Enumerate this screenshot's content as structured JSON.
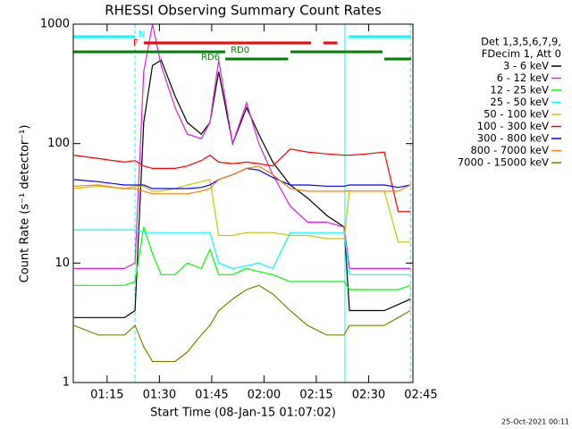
{
  "chart_data": {
    "type": "line",
    "title": "RHESSI Observing Summary Count Rates",
    "xlabel": "Start Time (08-Jan-15 01:07:02)",
    "ylabel": "Count Rate (s⁻¹ detector⁻¹)",
    "footer": "25-Oct-2021 00:11",
    "legend_title": [
      "Det 1,3,5,6,7,9,",
      "FDecim 1, Att 0"
    ],
    "log_y": true,
    "xlim": [
      65.3,
      162.7
    ],
    "ylim": [
      1,
      1000
    ],
    "yticks": [
      1,
      10,
      100,
      1000
    ],
    "xticks": [
      {
        "value": 75,
        "label": "01:15"
      },
      {
        "value": 90,
        "label": "01:30"
      },
      {
        "value": 105,
        "label": "01:45"
      },
      {
        "value": 120,
        "label": "02:00"
      },
      {
        "value": 135,
        "label": "02:15"
      },
      {
        "value": 150,
        "label": "02:30"
      },
      {
        "value": 165,
        "label": "02:45"
      }
    ],
    "x": [
      65.5,
      72.5,
      80,
      83,
      85.5,
      88,
      90.5,
      94.5,
      98,
      102,
      104.5,
      107,
      111,
      115,
      118.5,
      122.5,
      127.5,
      132.5,
      138,
      143,
      144.5,
      149.5,
      154.5,
      158.5,
      162
    ],
    "series": [
      {
        "name": "3 - 6 keV",
        "color": "#000000",
        "values": [
          3.5,
          3.5,
          3.5,
          4,
          150,
          450,
          500,
          250,
          150,
          120,
          150,
          400,
          100,
          200,
          120,
          70,
          45,
          35,
          25,
          20,
          4,
          4,
          4,
          4.5,
          5
        ]
      },
      {
        "name": "6 - 12 keV",
        "color": "#e020e0",
        "values": [
          9,
          9,
          9,
          10,
          400,
          1000,
          450,
          200,
          120,
          110,
          150,
          500,
          100,
          220,
          100,
          55,
          30,
          22,
          22,
          20,
          9,
          9,
          9,
          9,
          9
        ]
      },
      {
        "name": "12 - 25 keV",
        "color": "#00ff00",
        "values": [
          6.5,
          6.5,
          6.5,
          7,
          20,
          12,
          8,
          8,
          10,
          9,
          13,
          8,
          8,
          9,
          8.5,
          8,
          7,
          7,
          7,
          7,
          6,
          6,
          6,
          6,
          6.5
        ]
      },
      {
        "name": "25 - 50 keV",
        "color": "#00ffff",
        "values": [
          19,
          19,
          19,
          19,
          18,
          18,
          18,
          18,
          18,
          18,
          18,
          10,
          9,
          9.5,
          10,
          9,
          18,
          18,
          18,
          18,
          8,
          8,
          8,
          8,
          8
        ]
      },
      {
        "name": "50 - 100 keV",
        "color": "#c8c800",
        "values": [
          42,
          44,
          42,
          44,
          44,
          40,
          40,
          42,
          45,
          48,
          50,
          17,
          17,
          18,
          18,
          18,
          17,
          17,
          16,
          16,
          40,
          40,
          40,
          15,
          15
        ]
      },
      {
        "name": "100 - 300 keV",
        "color": "#ff0000",
        "values": [
          80,
          75,
          70,
          72,
          65,
          62,
          62,
          62,
          65,
          72,
          80,
          70,
          68,
          70,
          68,
          65,
          90,
          85,
          82,
          80,
          80,
          82,
          85,
          27,
          27
        ]
      },
      {
        "name": "300 - 800 keV",
        "color": "#0000ff",
        "values": [
          50,
          48,
          45,
          45,
          45,
          42,
          42,
          42,
          42,
          43,
          45,
          50,
          55,
          62,
          60,
          52,
          45,
          45,
          44,
          44,
          45,
          45,
          45,
          43,
          45
        ]
      },
      {
        "name": "800 - 7000 keV",
        "color": "#ff8000",
        "values": [
          44,
          45,
          42,
          42,
          40,
          38,
          38,
          38,
          38,
          40,
          42,
          50,
          55,
          62,
          65,
          55,
          42,
          40,
          40,
          40,
          40,
          40,
          40,
          40,
          45
        ]
      },
      {
        "name": "7000 - 15000 keV",
        "color": "#808000",
        "values": [
          3,
          2.5,
          2.5,
          3,
          2,
          1.5,
          1.5,
          1.5,
          1.8,
          2.5,
          3,
          4,
          5,
          6,
          6.5,
          5.5,
          4,
          3,
          2.5,
          2.5,
          3,
          3,
          3,
          3.5,
          4
        ]
      }
    ],
    "bands": [
      {
        "label": "N",
        "color": "#00ffff",
        "segments": [
          [
            65.3,
            83
          ],
          [
            144.3,
            162.2
          ]
        ]
      },
      {
        "label": "F",
        "color": "#ff0000",
        "segments": [
          [
            85.5,
            133.5
          ],
          [
            137,
            141
          ]
        ]
      },
      {
        "label": "RD0",
        "color": "#008000",
        "segments": [
          [
            65.3,
            108.9
          ],
          [
            127.6,
            154
          ]
        ]
      },
      {
        "label": "RD6",
        "color": "#008000",
        "segments": [
          [
            108.9,
            126.9
          ],
          [
            154.5,
            162.2
          ]
        ]
      }
    ],
    "vlines": [
      {
        "x": 83,
        "color": "#00ffff",
        "dashed": true
      },
      {
        "x": 143.2,
        "color": "#00ffff",
        "dashed": false
      },
      {
        "x": 162,
        "color": "#00ffff",
        "dashed": true
      }
    ]
  }
}
